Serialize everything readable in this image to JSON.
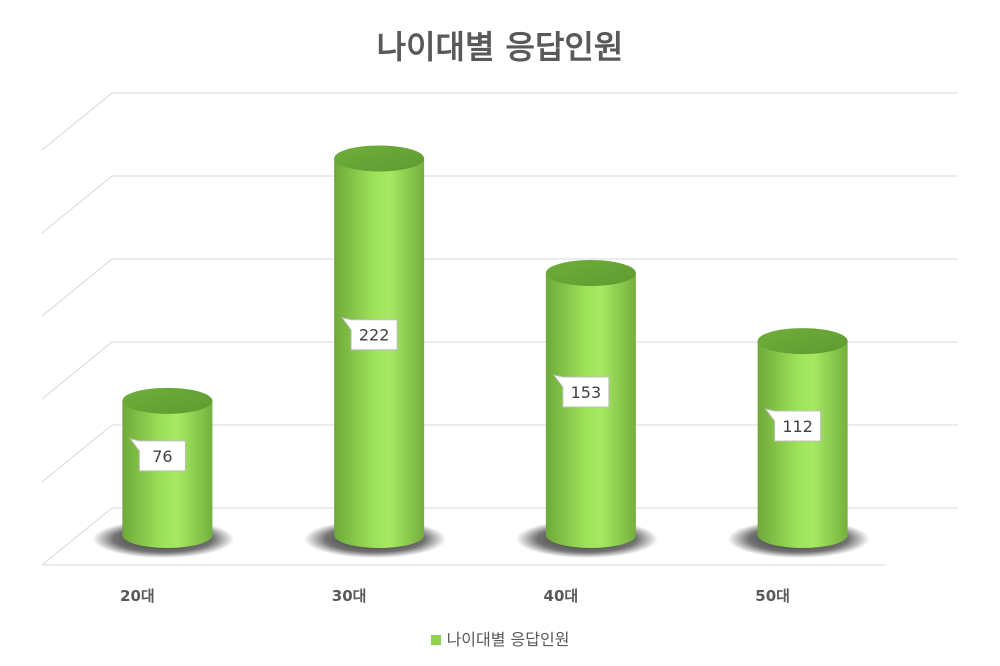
{
  "chart_data": {
    "type": "bar",
    "title": "나이대별 응답인원",
    "categories": [
      "20대",
      "30대",
      "40대",
      "50대"
    ],
    "series": [
      {
        "name": "나이대별 응답인원",
        "values": [
          76,
          222,
          153,
          112
        ]
      }
    ],
    "ylim": [
      0,
      250
    ],
    "grid": true,
    "legend": "bottom",
    "bar_color": "#92d050",
    "style": "3d-cylinder"
  }
}
